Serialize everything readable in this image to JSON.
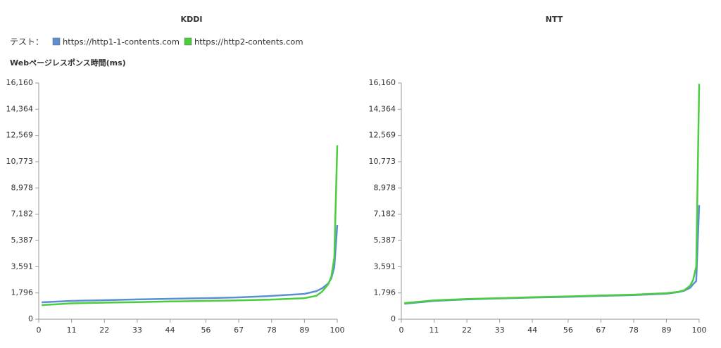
{
  "chart_data": [
    {
      "type": "line",
      "title": "KDDI",
      "ylabel": "Webページレスポンス時間(ms)",
      "legend_title": "テスト：",
      "x": [
        1,
        11,
        22,
        33,
        44,
        56,
        67,
        78,
        89,
        93,
        95,
        97,
        98,
        99,
        100
      ],
      "series": [
        {
          "name": "https://http1-1-contents.com",
          "color": "#5b8fd1",
          "values": [
            1154,
            1250,
            1300,
            1350,
            1395,
            1440,
            1490,
            1590,
            1730,
            1920,
            2120,
            2450,
            2790,
            3560,
            6450
          ]
        },
        {
          "name": "https://http2-contents.com",
          "color": "#4ccc3f",
          "values": [
            960,
            1080,
            1130,
            1170,
            1210,
            1250,
            1290,
            1340,
            1440,
            1600,
            1900,
            2400,
            2900,
            4200,
            11900
          ]
        }
      ],
      "xlim": [
        0,
        100
      ],
      "xticks": [
        0,
        11,
        22,
        33,
        44,
        56,
        67,
        78,
        89,
        100
      ],
      "ylim": [
        0,
        16160
      ],
      "yticks": [
        0,
        {
          "value": 1796,
          "label": "1,796"
        },
        {
          "value": 3591,
          "label": "3,591"
        },
        {
          "value": 5387,
          "label": "5,387"
        },
        {
          "value": 7182,
          "label": "7,182"
        },
        {
          "value": 8978,
          "label": "8,978"
        },
        {
          "value": 10773,
          "label": "10,773"
        },
        {
          "value": 12569,
          "label": "12,569"
        },
        {
          "value": 14364,
          "label": "14,364"
        },
        {
          "value": 16160,
          "label": "16,160"
        }
      ]
    },
    {
      "type": "line",
      "title": "NTT",
      "x": [
        1,
        11,
        22,
        33,
        44,
        56,
        67,
        78,
        89,
        93,
        95,
        97,
        98,
        99,
        100
      ],
      "series": [
        {
          "color": "#5b8fd1",
          "values": [
            1060,
            1250,
            1350,
            1420,
            1480,
            1530,
            1590,
            1650,
            1740,
            1850,
            1950,
            2150,
            2400,
            2600,
            7800
          ]
        },
        {
          "color": "#4ccc3f",
          "values": [
            1100,
            1290,
            1380,
            1440,
            1500,
            1560,
            1620,
            1680,
            1780,
            1870,
            1980,
            2300,
            2700,
            3600,
            16100
          ]
        }
      ],
      "xlim": [
        0,
        100
      ],
      "xticks": [
        0,
        11,
        22,
        33,
        44,
        56,
        67,
        78,
        89,
        100
      ],
      "ylim": [
        0,
        16160
      ],
      "yticks": [
        0,
        {
          "value": 1796,
          "label": "1,796"
        },
        {
          "value": 3591,
          "label": "3,591"
        },
        {
          "value": 5387,
          "label": "5,387"
        },
        {
          "value": 7182,
          "label": "7,182"
        },
        {
          "value": 8978,
          "label": "8,978"
        },
        {
          "value": 10773,
          "label": "10,773"
        },
        {
          "value": 12569,
          "label": "12,569"
        },
        {
          "value": 14364,
          "label": "14,364"
        },
        {
          "value": 16160,
          "label": "16,160"
        }
      ]
    }
  ]
}
